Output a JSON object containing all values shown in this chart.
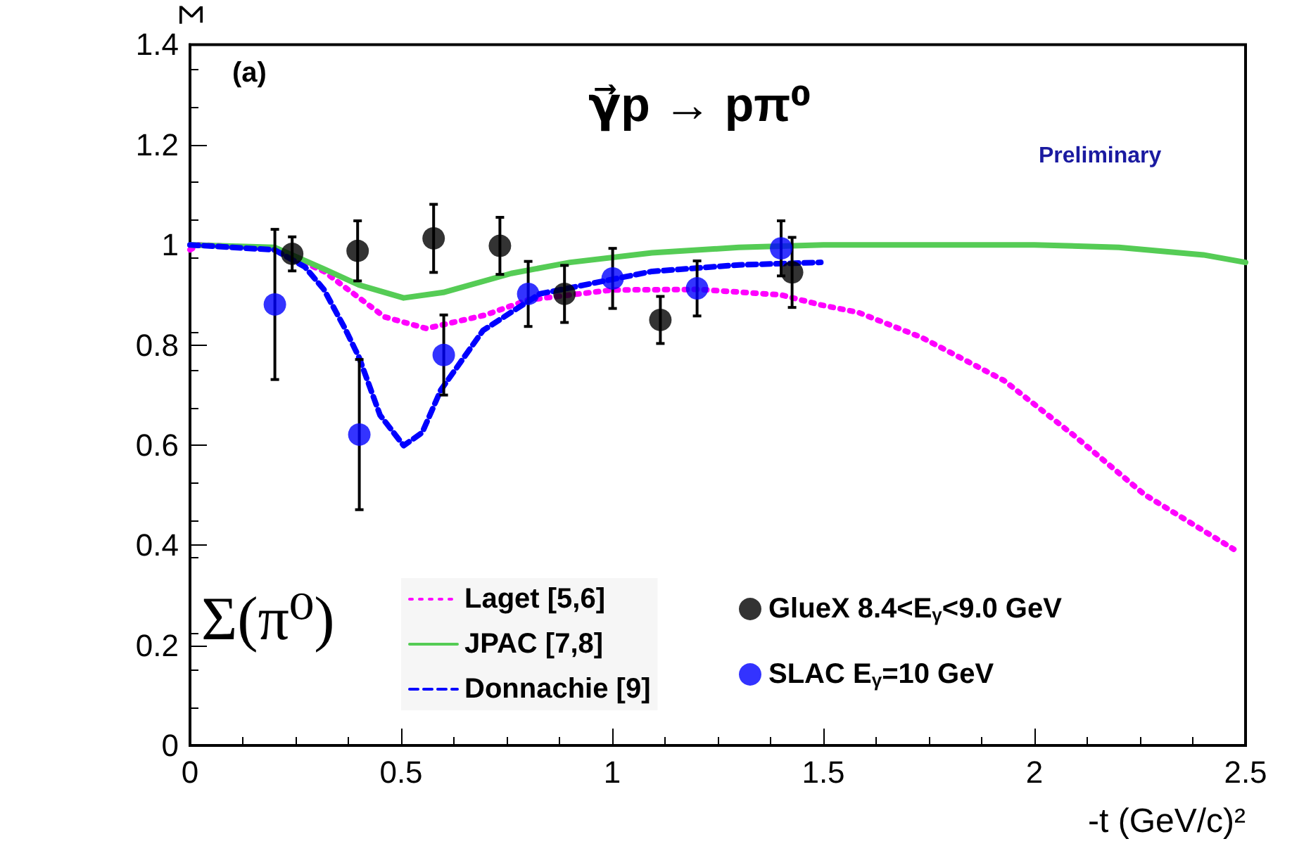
{
  "chart_data": {
    "type": "line",
    "xlabel": "-t (GeV/c)²",
    "ylabel": "Σ",
    "annotations": [
      "(a)",
      "γ⃗p → pπ⁰",
      "Preliminary",
      "Σ(π⁰)"
    ],
    "xlim": [
      0,
      2.5
    ],
    "xticks": [
      0,
      0.5,
      1,
      1.5,
      2,
      2.5
    ],
    "ylim": [
      0,
      1.4
    ],
    "yticks": [
      0,
      0.2,
      0.4,
      0.6,
      0.8,
      1,
      1.2,
      1.4
    ],
    "grid": false,
    "legend": "bottom",
    "series": [
      {
        "name": "Laget [5,6]",
        "color": "#ff00ff",
        "line_style": "dotted",
        "x": [
          0,
          0.02,
          0.194,
          0.317,
          0.461,
          0.56,
          0.7,
          0.8,
          1.0,
          1.206,
          1.4,
          1.494,
          1.583,
          1.733,
          1.928,
          2.094,
          2.261,
          2.472
        ],
        "values": [
          0.99,
          1.0,
          0.993,
          0.947,
          0.856,
          0.833,
          0.86,
          0.89,
          0.91,
          0.911,
          0.9,
          0.88,
          0.865,
          0.815,
          0.729,
          0.619,
          0.501,
          0.392
        ]
      },
      {
        "name": "JPAC [7,8]",
        "color": "#55cc55",
        "line_style": "solid",
        "x": [
          0,
          0.2,
          0.317,
          0.4,
          0.506,
          0.6,
          0.761,
          0.9,
          1.094,
          1.3,
          1.5,
          1.8,
          2.0,
          2.2,
          2.4,
          2.5
        ],
        "values": [
          1.0,
          0.995,
          0.952,
          0.92,
          0.894,
          0.905,
          0.943,
          0.965,
          0.984,
          0.995,
          1.0,
          1.0,
          1.0,
          0.995,
          0.98,
          0.965
        ]
      },
      {
        "name": "Donnachie [9]",
        "color": "#0000ff",
        "line_style": "dashed",
        "x": [
          0,
          0.2,
          0.272,
          0.317,
          0.367,
          0.401,
          0.45,
          0.506,
          0.55,
          0.594,
          0.694,
          0.828,
          1.094,
          1.3,
          1.494
        ],
        "values": [
          1.0,
          0.99,
          0.956,
          0.911,
          0.833,
          0.774,
          0.66,
          0.599,
          0.625,
          0.71,
          0.829,
          0.902,
          0.947,
          0.96,
          0.965
        ]
      },
      {
        "name": "GlueX 8.4<E$_{γ}$<9.0 GeV",
        "type": "scatter",
        "color": "#000000",
        "marker": "circle",
        "x": [
          0.242,
          0.397,
          0.577,
          0.734,
          0.887,
          1.114,
          1.426
        ],
        "values": [
          0.982,
          0.988,
          1.013,
          0.998,
          0.902,
          0.85,
          0.945
        ],
        "errors": [
          0.034,
          0.06,
          0.068,
          0.057,
          0.057,
          0.047,
          0.07
        ]
      },
      {
        "name": "SLAC E$_{γ}$=10 GeV",
        "type": "scatter",
        "color": "#0000ff",
        "marker": "circle",
        "x": [
          0.201,
          0.401,
          0.601,
          0.801,
          1.001,
          1.201,
          1.4
        ],
        "values": [
          0.881,
          0.621,
          0.78,
          0.902,
          0.933,
          0.913,
          0.993
        ],
        "errors": [
          0.15,
          0.15,
          0.08,
          0.065,
          0.06,
          0.055,
          0.055
        ]
      }
    ]
  }
}
